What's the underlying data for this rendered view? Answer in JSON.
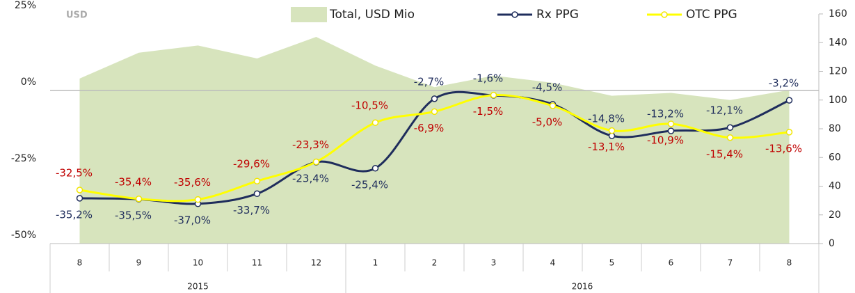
{
  "chart_data": {
    "type": "line",
    "unit_label": "USD",
    "categories": [
      "8",
      "9",
      "10",
      "11",
      "12",
      "1",
      "2",
      "3",
      "4",
      "5",
      "6",
      "7",
      "8"
    ],
    "x_groups": [
      {
        "label": "2015",
        "count": 5
      },
      {
        "label": "2016",
        "count": 8
      }
    ],
    "ylim": [
      -50,
      25
    ],
    "yticks": [
      {
        "value": -50,
        "label": "-50%"
      },
      {
        "value": -25,
        "label": "-25%"
      },
      {
        "value": 0,
        "label": "0%"
      },
      {
        "value": 25,
        "label": "25%"
      }
    ],
    "y2lim": [
      0,
      160
    ],
    "y2ticks": [
      0,
      20,
      40,
      60,
      80,
      100,
      120,
      140,
      160
    ],
    "series": [
      {
        "name": "Total, USD Mio",
        "type": "area",
        "axis": "y2",
        "color": "#d7e4bd",
        "values": [
          115,
          133,
          138,
          129,
          144,
          124,
          109,
          117,
          112,
          103,
          105,
          100,
          107
        ]
      },
      {
        "name": "Rx PPG",
        "type": "line",
        "color": "#1f2d5c",
        "label_color": "#1f2d5c",
        "values": [
          -35.2,
          -35.5,
          -37.0,
          -33.7,
          -23.4,
          -25.4,
          -2.7,
          -1.6,
          -4.5,
          -14.8,
          -13.2,
          -12.1,
          -3.2
        ],
        "value_labels": [
          "-35,2%",
          "-35,5%",
          "-37,0%",
          "-33,7%",
          "-23,4%",
          "-25,4%",
          "-2,7%",
          "-1,6%",
          "-4,5%",
          "-14,8%",
          "-13,2%",
          "-12,1%",
          "-3,2%"
        ]
      },
      {
        "name": "OTC PPG",
        "type": "line",
        "color": "#ffff00",
        "label_color": "#c00000",
        "values": [
          -32.5,
          -35.4,
          -35.6,
          -29.6,
          -23.3,
          -10.5,
          -6.9,
          -1.5,
          -5.0,
          -13.1,
          -10.9,
          -15.4,
          -13.6
        ],
        "value_labels": [
          "-32,5%",
          "-35,4%",
          "-35,6%",
          "-29,6%",
          "-23,3%",
          "-10,5%",
          "-6,9%",
          "-1,5%",
          "-5,0%",
          "-13,1%",
          "-10,9%",
          "-15,4%",
          "-13,6%"
        ]
      }
    ]
  }
}
